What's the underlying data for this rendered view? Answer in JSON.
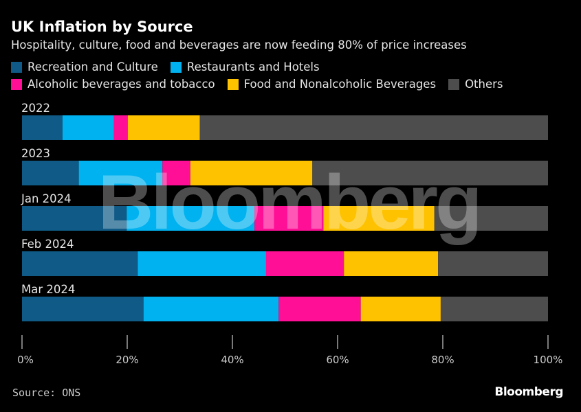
{
  "chart_data": {
    "type": "bar",
    "orientation": "horizontal",
    "stacked": true,
    "title": "UK Inflation by Source",
    "subtitle": "Hospitality, culture, food and beverages are now feeding 80% of price increases",
    "categories": [
      "2022",
      "2023",
      "Jan 2024",
      "Feb 2024",
      "Mar 2024"
    ],
    "series": [
      {
        "name": "Recreation and Culture",
        "color": "#0f5a86",
        "values": [
          7.7,
          10.8,
          19.9,
          22.0,
          23.1
        ]
      },
      {
        "name": "Restaurants and Hotels",
        "color": "#00b2f0",
        "values": [
          9.8,
          15.9,
          24.3,
          24.4,
          25.7
        ]
      },
      {
        "name": "Alcoholic beverages and tobacco",
        "color": "#ff0f96",
        "values": [
          2.6,
          5.3,
          13.1,
          14.8,
          15.6
        ]
      },
      {
        "name": "Food and Nonalcoholic Beverages",
        "color": "#ffc200",
        "values": [
          13.7,
          23.2,
          21.1,
          17.9,
          15.2
        ]
      },
      {
        "name": "Others",
        "color": "#4d4d4d",
        "values": [
          66.2,
          44.8,
          21.6,
          20.9,
          20.4
        ]
      }
    ],
    "xlim": [
      0,
      100
    ],
    "xticks": [
      "0%",
      "20%",
      "40%",
      "60%",
      "80%",
      "100%"
    ],
    "grid": false,
    "legend": "top"
  },
  "source": "Source: ONS",
  "logo": "Bloomberg",
  "watermark": "Bloomberg"
}
